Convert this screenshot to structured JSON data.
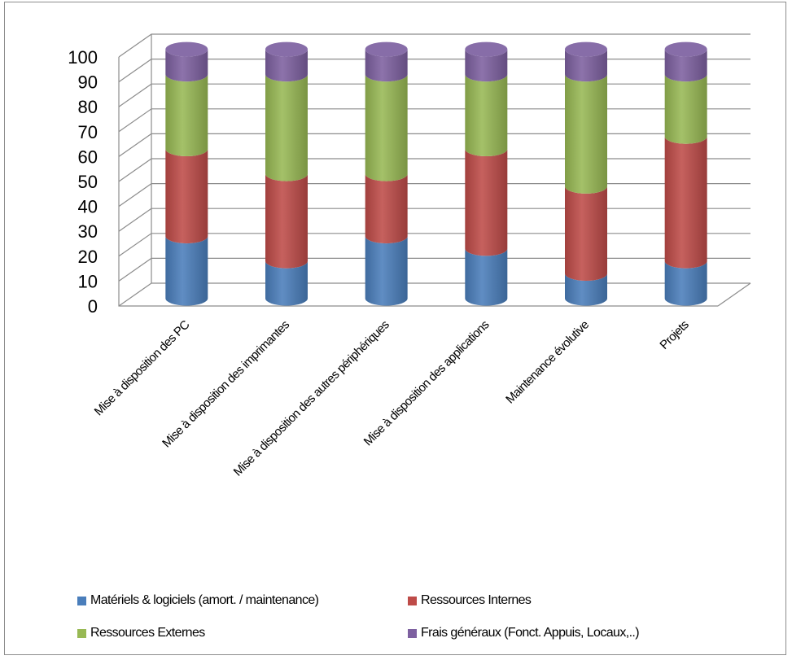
{
  "chart_data": {
    "type": "bar",
    "stacked": true,
    "three_d": true,
    "shape": "cylinder",
    "title": "",
    "xlabel": "",
    "ylabel": "",
    "ylim": [
      0,
      100
    ],
    "yticks": [
      0,
      10,
      20,
      30,
      40,
      50,
      60,
      70,
      80,
      90,
      100
    ],
    "grid": true,
    "legend_position": "bottom",
    "categories": [
      "Mise à disposition des PC",
      "Mise à disposition des imprimantes",
      "Mise à disposition des autres périphériques",
      "Mise à disposition des applications",
      "Maintenance évolutive",
      "Projets"
    ],
    "series": [
      {
        "name": "Matériels & logiciels (amort. / maintenance)",
        "color": "#4a7ebb",
        "values": [
          25,
          15,
          25,
          20,
          10,
          15
        ]
      },
      {
        "name": "Ressources Internes",
        "color": "#be4b48",
        "values": [
          35,
          35,
          25,
          40,
          35,
          50
        ]
      },
      {
        "name": "Ressources Externes",
        "color": "#98b954",
        "values": [
          30,
          40,
          40,
          30,
          45,
          25
        ]
      },
      {
        "name": "Frais généraux (Fonct. Appuis, Locaux,..)",
        "color": "#7d60a0",
        "values": [
          10,
          10,
          10,
          10,
          10,
          10
        ]
      }
    ]
  }
}
